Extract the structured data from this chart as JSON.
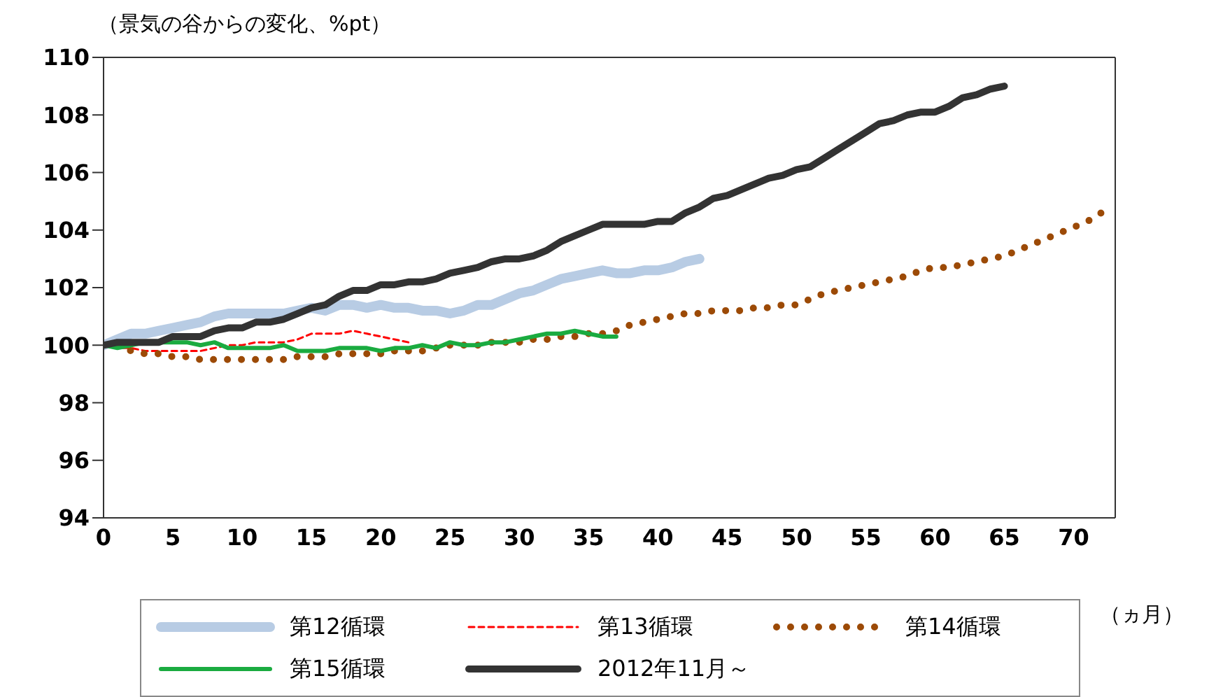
{
  "chart_data": {
    "type": "line",
    "ylabel": "（景気の谷からの変化、%pt）",
    "xlabel": "（ヵ月）",
    "xlim": [
      0,
      73
    ],
    "xticks": [
      0,
      5,
      10,
      15,
      20,
      25,
      30,
      35,
      40,
      45,
      50,
      55,
      60,
      65,
      70
    ],
    "ylim": [
      94,
      110
    ],
    "yticks": [
      94,
      96,
      98,
      100,
      102,
      104,
      106,
      108,
      110
    ],
    "grid": false,
    "legend": "bottom",
    "marker": "none",
    "series": [
      {
        "name": "第12循環",
        "color": "#b8cce4",
        "line_style": "solid",
        "x": [
          0,
          1,
          2,
          3,
          4,
          5,
          6,
          7,
          8,
          9,
          10,
          11,
          12,
          13,
          14,
          15,
          16,
          17,
          18,
          19,
          20,
          21,
          22,
          23,
          24,
          25,
          26,
          27,
          28,
          29,
          30,
          31,
          32,
          33,
          34,
          35,
          36,
          37,
          38,
          39,
          40,
          41,
          42,
          43
        ],
        "values": [
          100,
          100.2,
          100.4,
          100.4,
          100.5,
          100.6,
          100.7,
          100.8,
          101.0,
          101.1,
          101.1,
          101.1,
          101.1,
          101.1,
          101.2,
          101.3,
          101.2,
          101.4,
          101.4,
          101.3,
          101.4,
          101.3,
          101.3,
          101.2,
          101.2,
          101.1,
          101.2,
          101.4,
          101.4,
          101.6,
          101.8,
          101.9,
          102.1,
          102.3,
          102.4,
          102.5,
          102.6,
          102.5,
          102.5,
          102.6,
          102.6,
          102.7,
          102.9,
          103.0
        ]
      },
      {
        "name": "第13循環",
        "color": "#ff0000",
        "line_style": "dashed",
        "x": [
          0,
          1,
          2,
          3,
          4,
          5,
          6,
          7,
          8,
          9,
          10,
          11,
          12,
          13,
          14,
          15,
          16,
          17,
          18,
          19,
          20,
          21,
          22
        ],
        "values": [
          100,
          99.9,
          99.9,
          99.8,
          99.8,
          99.8,
          99.8,
          99.8,
          99.9,
          100.0,
          100.0,
          100.1,
          100.1,
          100.1,
          100.2,
          100.4,
          100.4,
          100.4,
          100.5,
          100.4,
          100.3,
          100.2,
          100.1
        ]
      },
      {
        "name": "第14循環",
        "color": "#9c4a06",
        "line_style": "dotted",
        "x": [
          0,
          1,
          2,
          3,
          4,
          5,
          6,
          7,
          8,
          9,
          10,
          11,
          12,
          13,
          14,
          15,
          16,
          17,
          18,
          19,
          20,
          21,
          22,
          23,
          24,
          25,
          26,
          27,
          28,
          29,
          30,
          31,
          32,
          33,
          34,
          35,
          36,
          37,
          38,
          39,
          40,
          41,
          42,
          43,
          44,
          45,
          46,
          47,
          48,
          49,
          50,
          51,
          52,
          53,
          54,
          55,
          56,
          57,
          58,
          59,
          60,
          61,
          62,
          63,
          64,
          65,
          66,
          67,
          68,
          69,
          70,
          71,
          72
        ],
        "values": [
          100,
          100,
          99.8,
          99.7,
          99.7,
          99.6,
          99.6,
          99.5,
          99.5,
          99.5,
          99.5,
          99.5,
          99.5,
          99.5,
          99.6,
          99.6,
          99.6,
          99.7,
          99.7,
          99.7,
          99.7,
          99.8,
          99.8,
          99.8,
          99.9,
          100.0,
          100.0,
          100.0,
          100.1,
          100.1,
          100.1,
          100.2,
          100.2,
          100.3,
          100.3,
          100.4,
          100.4,
          100.5,
          100.7,
          100.8,
          100.9,
          101.0,
          101.1,
          101.1,
          101.2,
          101.2,
          101.2,
          101.3,
          101.3,
          101.4,
          101.4,
          101.6,
          101.8,
          101.9,
          102.0,
          102.1,
          102.2,
          102.3,
          102.4,
          102.6,
          102.7,
          102.7,
          102.8,
          102.9,
          103.0,
          103.1,
          103.3,
          103.5,
          103.7,
          103.9,
          104.1,
          104.3,
          104.6
        ]
      },
      {
        "name": "第15循環",
        "color": "#1aab40",
        "line_style": "solid",
        "x": [
          0,
          1,
          2,
          3,
          4,
          5,
          6,
          7,
          8,
          9,
          10,
          11,
          12,
          13,
          14,
          15,
          16,
          17,
          18,
          19,
          20,
          21,
          22,
          23,
          24,
          25,
          26,
          27,
          28,
          29,
          30,
          31,
          32,
          33,
          34,
          35,
          36,
          37
        ],
        "values": [
          100,
          99.9,
          100.0,
          100.1,
          100.1,
          100.1,
          100.1,
          100.0,
          100.1,
          99.9,
          99.9,
          99.9,
          99.9,
          100.0,
          99.8,
          99.8,
          99.8,
          99.9,
          99.9,
          99.9,
          99.8,
          99.9,
          99.9,
          100.0,
          99.9,
          100.1,
          100.0,
          100.0,
          100.1,
          100.1,
          100.2,
          100.3,
          100.4,
          100.4,
          100.5,
          100.4,
          100.3,
          100.3
        ]
      },
      {
        "name": "2012年11月～",
        "color": "#333333",
        "line_style": "solid",
        "x": [
          0,
          1,
          2,
          3,
          4,
          5,
          6,
          7,
          8,
          9,
          10,
          11,
          12,
          13,
          14,
          15,
          16,
          17,
          18,
          19,
          20,
          21,
          22,
          23,
          24,
          25,
          26,
          27,
          28,
          29,
          30,
          31,
          32,
          33,
          34,
          35,
          36,
          37,
          38,
          39,
          40,
          41,
          42,
          43,
          44,
          45,
          46,
          47,
          48,
          49,
          50,
          51,
          52,
          53,
          54,
          55,
          56,
          57,
          58,
          59,
          60,
          61,
          62,
          63,
          64,
          65
        ],
        "values": [
          100,
          100.1,
          100.1,
          100.1,
          100.1,
          100.3,
          100.3,
          100.3,
          100.5,
          100.6,
          100.6,
          100.8,
          100.8,
          100.9,
          101.1,
          101.3,
          101.4,
          101.7,
          101.9,
          101.9,
          102.1,
          102.1,
          102.2,
          102.2,
          102.3,
          102.5,
          102.6,
          102.7,
          102.9,
          103.0,
          103.0,
          103.1,
          103.3,
          103.6,
          103.8,
          104.0,
          104.2,
          104.2,
          104.2,
          104.2,
          104.3,
          104.3,
          104.6,
          104.8,
          105.1,
          105.2,
          105.4,
          105.6,
          105.8,
          105.9,
          106.1,
          106.2,
          106.5,
          106.8,
          107.1,
          107.4,
          107.7,
          107.8,
          108.0,
          108.1,
          108.1,
          108.3,
          108.6,
          108.7,
          108.9,
          109.0
        ]
      }
    ]
  }
}
